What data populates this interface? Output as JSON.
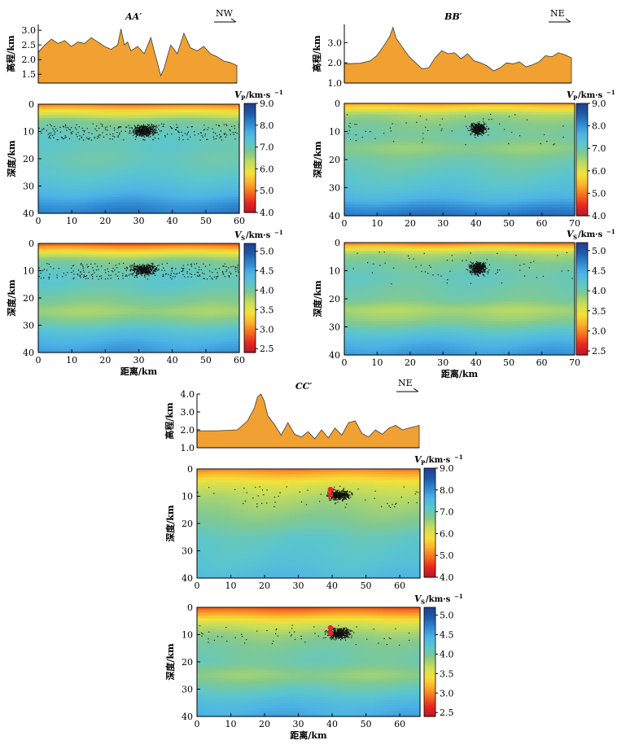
{
  "colors": {
    "elevation_fill": "#f0a131",
    "colormap": [
      "#b7182a",
      "#e8261f",
      "#f46d1f",
      "#fbb12c",
      "#f4e23a",
      "#c6dd5a",
      "#83c98e",
      "#5cc6cd",
      "#4db3e6",
      "#2f86d0",
      "#1f5aa8",
      "#233f8e"
    ]
  },
  "labels": {
    "elev_ylabel": "高程/km",
    "depth_ylabel": "深度/km",
    "dist_xlabel": "距离/km",
    "vp_label": "V",
    "vp_sub": "P",
    "vs_label": "V",
    "vs_sub": "S",
    "unit": "/km·s",
    "unit_sup": "−1"
  },
  "chart_data": [
    {
      "type": "line",
      "panel": "elevation",
      "title": "AA′",
      "direction": "NW",
      "xlim": [
        0,
        60
      ],
      "ylim": [
        1.2,
        3.2
      ],
      "yticks": [
        "1.5",
        "2.0",
        "2.5",
        "3.0"
      ],
      "x": [
        0,
        2,
        4,
        6,
        8,
        10,
        12,
        14,
        16,
        18,
        20,
        22,
        24,
        25,
        26,
        27,
        28,
        30,
        32,
        34,
        35,
        36,
        37,
        38,
        40,
        42,
        44,
        46,
        48,
        50,
        52,
        54,
        56,
        58,
        60
      ],
      "y": [
        2.25,
        2.5,
        2.7,
        2.55,
        2.65,
        2.45,
        2.6,
        2.55,
        2.75,
        2.6,
        2.45,
        2.35,
        2.5,
        3.05,
        2.5,
        2.6,
        2.3,
        2.45,
        2.2,
        2.75,
        2.3,
        1.9,
        1.45,
        1.7,
        2.5,
        2.2,
        2.9,
        2.4,
        2.3,
        2.45,
        2.2,
        2.1,
        1.95,
        1.9,
        1.8
      ]
    },
    {
      "type": "line",
      "panel": "elevation",
      "title": "BB′",
      "direction": "NE",
      "xlim": [
        0,
        70
      ],
      "ylim": [
        1.0,
        3.9
      ],
      "yticks": [
        "1.0",
        "2.0",
        "3.0"
      ],
      "x": [
        0,
        5,
        8,
        10,
        12,
        14,
        15,
        16,
        18,
        20,
        22,
        24,
        26,
        28,
        30,
        32,
        34,
        36,
        38,
        40,
        42,
        44,
        46,
        48,
        50,
        52,
        54,
        56,
        58,
        60,
        62,
        64,
        66,
        68,
        70
      ],
      "y": [
        1.95,
        1.98,
        2.1,
        2.35,
        2.8,
        3.3,
        3.75,
        3.2,
        2.75,
        2.3,
        2.0,
        1.7,
        1.75,
        2.25,
        2.6,
        2.45,
        2.5,
        2.2,
        2.45,
        2.1,
        2.0,
        1.85,
        1.6,
        1.75,
        2.0,
        1.95,
        2.05,
        1.8,
        1.9,
        2.05,
        2.35,
        2.3,
        2.5,
        2.4,
        2.25
      ]
    },
    {
      "type": "line",
      "panel": "elevation",
      "title": "CC′",
      "direction": "NE",
      "xlim": [
        0,
        66
      ],
      "ylim": [
        1.0,
        4.0
      ],
      "yticks": [
        "1.0",
        "2.0",
        "3.0",
        "4.0"
      ],
      "x": [
        0,
        6,
        12,
        15,
        17,
        18,
        19,
        20,
        21,
        23,
        25,
        27,
        29,
        31,
        33,
        35,
        37,
        39,
        41,
        43,
        45,
        47,
        49,
        51,
        53,
        55,
        57,
        59,
        61,
        63,
        66
      ],
      "y": [
        1.95,
        1.95,
        2.0,
        2.5,
        3.2,
        3.85,
        4.0,
        3.6,
        2.8,
        2.3,
        1.7,
        2.4,
        1.75,
        1.6,
        1.9,
        1.5,
        2.0,
        1.55,
        2.1,
        1.7,
        2.4,
        2.5,
        1.8,
        1.6,
        2.0,
        1.75,
        2.1,
        2.25,
        2.0,
        2.1,
        2.25
      ]
    },
    {
      "type": "heatmap",
      "panel": "velocity",
      "profile": "AA′",
      "quantity": "Vp",
      "xlim": [
        0,
        60
      ],
      "ylim": [
        40,
        0
      ],
      "xticks": [
        "0",
        "10",
        "20",
        "30",
        "40",
        "50",
        "60"
      ],
      "yticks": [
        "0",
        "10",
        "20",
        "30",
        "40"
      ],
      "colorbar": {
        "min": 4.0,
        "max": 9.0,
        "ticks": [
          "4.0",
          "5.0",
          "6.0",
          "7.0",
          "8.0",
          "9.0"
        ]
      },
      "depth_profile": [
        [
          0,
          5.0
        ],
        [
          2,
          5.6
        ],
        [
          4,
          6.2
        ],
        [
          6,
          6.7
        ],
        [
          10,
          7.0
        ],
        [
          15,
          7.1
        ],
        [
          20,
          7.0
        ],
        [
          25,
          7.15
        ],
        [
          30,
          7.4
        ],
        [
          34,
          7.7
        ],
        [
          37,
          8.0
        ],
        [
          40,
          8.2
        ]
      ],
      "seismicity_clusters": [
        {
          "x": [
            25,
            38
          ],
          "depth": [
            6,
            13
          ],
          "density": "dense"
        },
        {
          "x": [
            0,
            60
          ],
          "depth": [
            7,
            13
          ],
          "density": "scattered"
        }
      ]
    },
    {
      "type": "heatmap",
      "panel": "velocity",
      "profile": "AA′",
      "quantity": "Vs",
      "xlim": [
        0,
        60
      ],
      "ylim": [
        40,
        0
      ],
      "xticks": [
        "0",
        "10",
        "20",
        "30",
        "40",
        "50",
        "60"
      ],
      "yticks": [
        "0",
        "10",
        "20",
        "30",
        "40"
      ],
      "colorbar": {
        "min": 2.4,
        "max": 5.2,
        "ticks": [
          "2.5",
          "3.0",
          "3.5",
          "4.0",
          "4.5",
          "5.0"
        ]
      },
      "depth_profile": [
        [
          0,
          2.8
        ],
        [
          2,
          3.2
        ],
        [
          4,
          3.6
        ],
        [
          6,
          3.9
        ],
        [
          10,
          4.1
        ],
        [
          15,
          4.15
        ],
        [
          20,
          4.0
        ],
        [
          25,
          3.8
        ],
        [
          28,
          3.95
        ],
        [
          32,
          4.25
        ],
        [
          36,
          4.45
        ],
        [
          40,
          4.6
        ]
      ],
      "seismicity_clusters": [
        {
          "x": [
            25,
            38
          ],
          "depth": [
            6,
            13
          ],
          "density": "dense"
        },
        {
          "x": [
            0,
            60
          ],
          "depth": [
            7,
            13
          ],
          "density": "scattered"
        }
      ]
    },
    {
      "type": "heatmap",
      "panel": "velocity",
      "profile": "BB′",
      "quantity": "Vp",
      "xlim": [
        0,
        70
      ],
      "ylim": [
        40,
        0
      ],
      "xticks": [
        "0",
        "10",
        "20",
        "30",
        "40",
        "50",
        "60",
        "70"
      ],
      "yticks": [
        "0",
        "10",
        "20",
        "30",
        "40"
      ],
      "colorbar": {
        "min": 4.0,
        "max": 9.0,
        "ticks": [
          "4.0",
          "5.0",
          "6.0",
          "7.0",
          "8.0",
          "9.0"
        ]
      },
      "depth_profile": [
        [
          0,
          5.2
        ],
        [
          2,
          5.9
        ],
        [
          4,
          6.5
        ],
        [
          8,
          6.8
        ],
        [
          12,
          6.9
        ],
        [
          16,
          6.6
        ],
        [
          20,
          6.9
        ],
        [
          25,
          7.1
        ],
        [
          30,
          7.3
        ],
        [
          34,
          7.6
        ],
        [
          37,
          8.0
        ],
        [
          40,
          8.3
        ]
      ],
      "seismicity_clusters": [
        {
          "x": [
            36,
            45
          ],
          "depth": [
            5,
            13
          ],
          "density": "dense"
        },
        {
          "x": [
            0,
            70
          ],
          "depth": [
            3,
            15
          ],
          "density": "sparse"
        }
      ]
    },
    {
      "type": "heatmap",
      "panel": "velocity",
      "profile": "BB′",
      "quantity": "Vs",
      "xlim": [
        0,
        70
      ],
      "ylim": [
        40,
        0
      ],
      "xticks": [
        "0",
        "10",
        "20",
        "30",
        "40",
        "50",
        "60",
        "70"
      ],
      "yticks": [
        "0",
        "10",
        "20",
        "30",
        "40"
      ],
      "colorbar": {
        "min": 2.4,
        "max": 5.2,
        "ticks": [
          "2.5",
          "3.0",
          "3.5",
          "4.0",
          "4.5",
          "5.0"
        ]
      },
      "depth_profile": [
        [
          0,
          2.9
        ],
        [
          2,
          3.4
        ],
        [
          4,
          3.8
        ],
        [
          8,
          4.0
        ],
        [
          12,
          4.1
        ],
        [
          16,
          4.05
        ],
        [
          20,
          4.0
        ],
        [
          24,
          3.75
        ],
        [
          28,
          3.9
        ],
        [
          32,
          4.2
        ],
        [
          36,
          4.45
        ],
        [
          40,
          4.6
        ]
      ],
      "seismicity_clusters": [
        {
          "x": [
            36,
            45
          ],
          "depth": [
            5,
            13
          ],
          "density": "dense"
        },
        {
          "x": [
            0,
            70
          ],
          "depth": [
            3,
            15
          ],
          "density": "sparse"
        }
      ]
    },
    {
      "type": "heatmap",
      "panel": "velocity",
      "profile": "CC′",
      "quantity": "Vp",
      "xlim": [
        0,
        66
      ],
      "ylim": [
        40,
        0
      ],
      "xticks": [
        "0",
        "10",
        "20",
        "30",
        "40",
        "50",
        "60"
      ],
      "yticks": [
        "0",
        "10",
        "20",
        "30",
        "40"
      ],
      "colorbar": {
        "min": 4.0,
        "max": 9.0,
        "ticks": [
          "4.0",
          "5.0",
          "6.0",
          "7.0",
          "8.0",
          "9.0"
        ]
      },
      "depth_profile": [
        [
          0,
          5.0
        ],
        [
          3,
          5.6
        ],
        [
          6,
          6.1
        ],
        [
          10,
          6.4
        ],
        [
          15,
          6.6
        ],
        [
          20,
          6.8
        ],
        [
          25,
          7.1
        ],
        [
          30,
          7.2
        ],
        [
          35,
          7.3
        ],
        [
          40,
          7.5
        ]
      ],
      "seismicity_clusters": [
        {
          "x": [
            36,
            48
          ],
          "depth": [
            6,
            13
          ],
          "density": "dense"
        },
        {
          "x": [
            0,
            66
          ],
          "depth": [
            6,
            14
          ],
          "density": "sparse"
        }
      ],
      "highlight_events": [
        {
          "x": 39.5,
          "depth": 7.5
        },
        {
          "x": 39.5,
          "depth": 9.5
        }
      ]
    },
    {
      "type": "heatmap",
      "panel": "velocity",
      "profile": "CC′",
      "quantity": "Vs",
      "xlim": [
        0,
        66
      ],
      "ylim": [
        40,
        0
      ],
      "xticks": [
        "0",
        "10",
        "20",
        "30",
        "40",
        "50",
        "60"
      ],
      "yticks": [
        "0",
        "10",
        "20",
        "30",
        "40"
      ],
      "colorbar": {
        "min": 2.4,
        "max": 5.2,
        "ticks": [
          "2.5",
          "3.0",
          "3.5",
          "4.0",
          "4.5",
          "5.0"
        ]
      },
      "depth_profile": [
        [
          0,
          2.8
        ],
        [
          3,
          3.2
        ],
        [
          6,
          3.6
        ],
        [
          10,
          3.85
        ],
        [
          15,
          4.0
        ],
        [
          20,
          4.05
        ],
        [
          25,
          3.85
        ],
        [
          30,
          4.1
        ],
        [
          35,
          4.35
        ],
        [
          40,
          4.5
        ]
      ],
      "seismicity_clusters": [
        {
          "x": [
            36,
            48
          ],
          "depth": [
            6,
            13
          ],
          "density": "dense"
        },
        {
          "x": [
            0,
            66
          ],
          "depth": [
            6,
            14
          ],
          "density": "sparse"
        }
      ],
      "highlight_events": [
        {
          "x": 39.5,
          "depth": 7.5
        },
        {
          "x": 39.5,
          "depth": 9.5
        }
      ]
    }
  ]
}
